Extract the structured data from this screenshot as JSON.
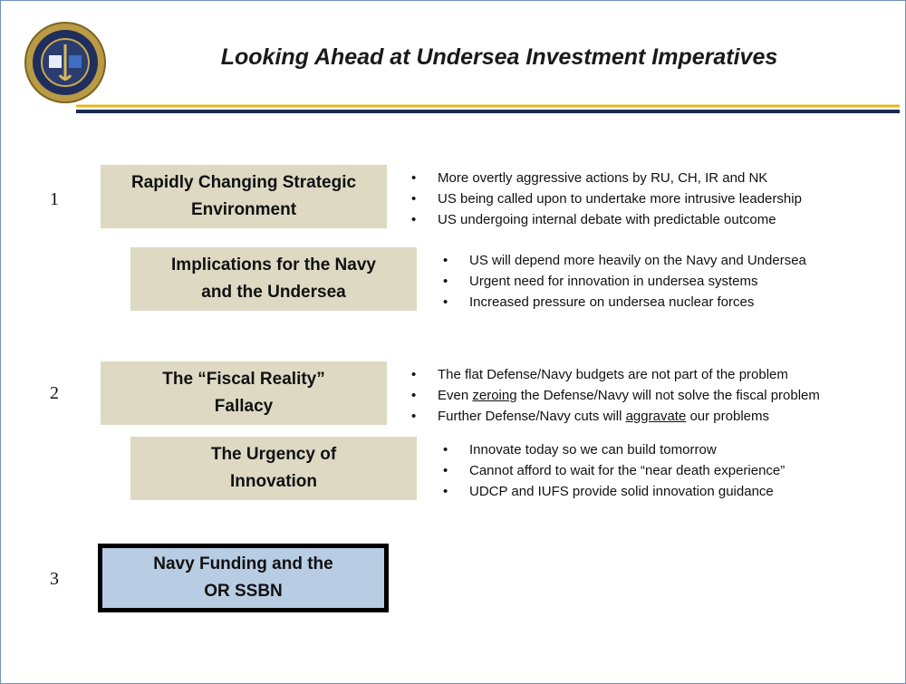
{
  "title": "Looking Ahead at Undersea Investment Imperatives",
  "sections": [
    {
      "number": "1",
      "items": [
        {
          "label": [
            "Rapidly Changing Strategic",
            "Environment"
          ],
          "bullets": [
            "More overtly aggressive actions by RU, CH, IR and NK",
            "US being called upon to undertake more intrusive leadership",
            "US undergoing internal debate with predictable outcome"
          ]
        },
        {
          "label": [
            "Implications for the Navy",
            "and the Undersea"
          ],
          "bullets": [
            "US will depend more heavily on the Navy and Undersea",
            "Urgent need for innovation in undersea systems",
            "Increased pressure on undersea nuclear forces"
          ]
        }
      ]
    },
    {
      "number": "2",
      "items": [
        {
          "label": [
            "The “Fiscal Reality”",
            "Fallacy"
          ],
          "bullets": [
            "The flat Defense/Navy budgets are not part of the problem",
            [
              {
                "text": "Even "
              },
              {
                "text": "zeroing",
                "underline": true
              },
              {
                "text": " the Defense/Navy will not solve the fiscal problem"
              }
            ],
            [
              {
                "text": "Further Defense/Navy cuts will "
              },
              {
                "text": "aggravate",
                "underline": true
              },
              {
                "text": " our problems"
              }
            ]
          ]
        },
        {
          "label": [
            "The Urgency of",
            "Innovation"
          ],
          "bullets": [
            "Innovate today so we can build tomorrow",
            "Cannot afford to wait for the “near death experience”",
            "UDCP and IUFS provide solid innovation guidance"
          ]
        }
      ]
    },
    {
      "number": "3",
      "items": [
        {
          "label": [
            "Navy Funding and the",
            "OR SSBN"
          ],
          "bullets": []
        }
      ]
    }
  ]
}
